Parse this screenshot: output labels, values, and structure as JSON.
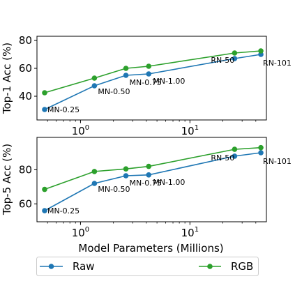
{
  "chart_data": [
    {
      "type": "line",
      "title": "",
      "xlabel": "",
      "ylabel": "Top-1 Acc (%)",
      "xscale": "log",
      "xlim": [
        0.4,
        50
      ],
      "ylim": [
        23,
        83
      ],
      "yticks": [
        40,
        60,
        80
      ],
      "xtick_labels": [
        {
          "value": 1,
          "base": "10",
          "exp": "0"
        },
        {
          "value": 10,
          "base": "10",
          "exp": "1"
        }
      ],
      "x": [
        0.47,
        1.34,
        2.6,
        4.2,
        25.6,
        44.5
      ],
      "point_labels": [
        "MN-0.25",
        "MN-0.50",
        "MN-0.75",
        "MN-1.00",
        "RN-50",
        "RN-101"
      ],
      "series": [
        {
          "name": "Raw",
          "color": "#1f77b4",
          "values": [
            30.5,
            47.5,
            55,
            56,
            67,
            70
          ]
        },
        {
          "name": "RGB",
          "color": "#2ca02c",
          "values": [
            42.5,
            53,
            60,
            61.5,
            71,
            72.5
          ]
        }
      ],
      "grid": false
    },
    {
      "type": "line",
      "title": "",
      "xlabel": "Model Parameters (Millions)",
      "ylabel": "Top-5 Acc (%)",
      "xscale": "log",
      "xlim": [
        0.4,
        50
      ],
      "ylim": [
        49.5,
        99
      ],
      "yticks": [
        60,
        80
      ],
      "xtick_labels": [
        {
          "value": 1,
          "base": "10",
          "exp": "0"
        },
        {
          "value": 10,
          "base": "10",
          "exp": "1"
        }
      ],
      "x": [
        0.47,
        1.34,
        2.6,
        4.2,
        25.6,
        44.5
      ],
      "point_labels": [
        "MN-0.25",
        "MN-0.50",
        "MN-0.75",
        "MN-1.00",
        "RN-50",
        "RN-101"
      ],
      "series": [
        {
          "name": "Raw",
          "color": "#1f77b4",
          "values": [
            56,
            72,
            76.5,
            77,
            88,
            90
          ]
        },
        {
          "name": "RGB",
          "color": "#2ca02c",
          "values": [
            68.5,
            79,
            80.5,
            82,
            92,
            93
          ]
        }
      ],
      "grid": false
    }
  ],
  "legend": {
    "placement": "bottom",
    "entries": [
      {
        "name": "Raw",
        "color": "#1f77b4"
      },
      {
        "name": "RGB",
        "color": "#2ca02c"
      }
    ]
  }
}
